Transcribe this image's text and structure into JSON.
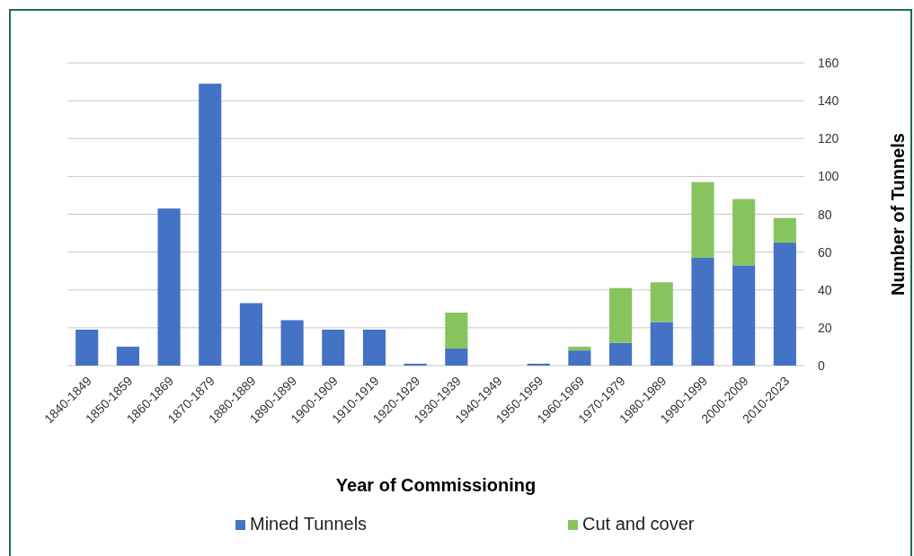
{
  "chart_data": {
    "type": "bar",
    "stacked": true,
    "xlabel": "Year of Commissioning",
    "ylabel": "Number of Tunnels",
    "categories": [
      "1840-1849",
      "1850-1859",
      "1860-1869",
      "1870-1879",
      "1880-1889",
      "1890-1899",
      "1900-1909",
      "1910-1919",
      "1920-1929",
      "1930-1939",
      "1940-1949",
      "1950-1959",
      "1960-1969",
      "1970-1979",
      "1980-1989",
      "1990-1999",
      "2000-2009",
      "2010-2023"
    ],
    "series": [
      {
        "name": "Mined Tunnels",
        "color": "#4472c4",
        "values": [
          19,
          10,
          83,
          149,
          33,
          24,
          19,
          19,
          1,
          9,
          0,
          1,
          8,
          12,
          23,
          57,
          53,
          65
        ]
      },
      {
        "name": "Cut and cover",
        "color": "#88c45e",
        "values": [
          0,
          0,
          0,
          0,
          0,
          0,
          0,
          0,
          0,
          19,
          0,
          0,
          2,
          29,
          21,
          40,
          35,
          13
        ]
      }
    ],
    "ylim": [
      0,
      160
    ],
    "yticks": [
      0,
      20,
      40,
      60,
      80,
      100,
      120,
      140,
      160
    ],
    "grid": "y",
    "legend": "bottom"
  }
}
